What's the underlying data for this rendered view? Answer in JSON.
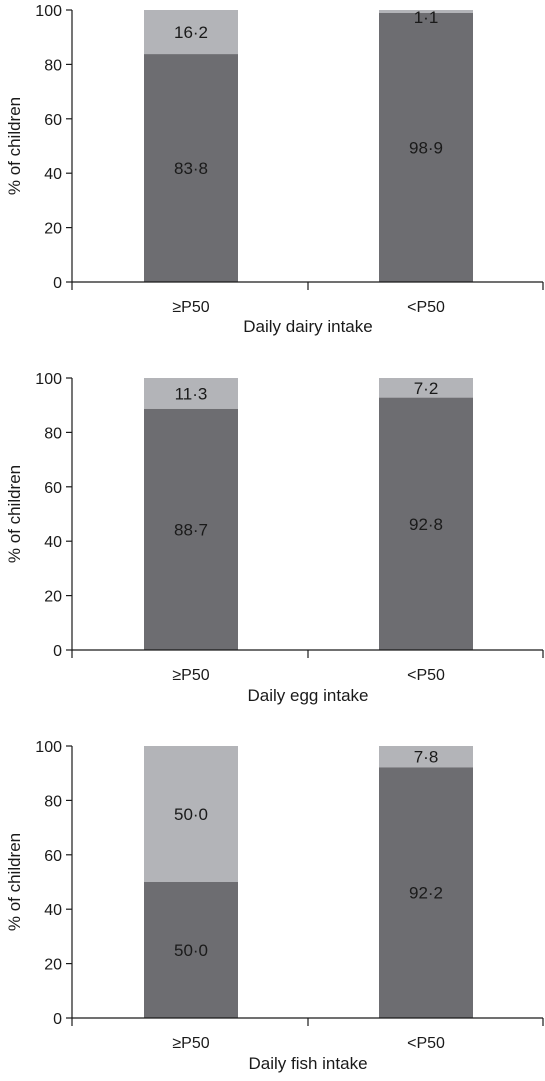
{
  "colors": {
    "bottom_segment": "#6d6d71",
    "top_segment": "#b3b4b8",
    "axis": "#1a1a1a"
  },
  "chart_data": [
    {
      "type": "bar",
      "stacked": true,
      "categories": [
        "≥P50",
        "<P50"
      ],
      "series": [
        {
          "values": [
            83.8,
            98.9
          ],
          "labels": [
            "83·8",
            "98·9"
          ]
        },
        {
          "values": [
            16.2,
            1.1
          ],
          "labels": [
            "16·2",
            "1·1"
          ]
        }
      ],
      "xlabel": "Daily dairy intake",
      "ylabel": "% of children",
      "ylim": [
        0,
        100
      ],
      "yticks": [
        0,
        20,
        40,
        60,
        80,
        100
      ],
      "grid": false
    },
    {
      "type": "bar",
      "stacked": true,
      "categories": [
        "≥P50",
        "<P50"
      ],
      "series": [
        {
          "values": [
            88.7,
            92.8
          ],
          "labels": [
            "88·7",
            "92·8"
          ]
        },
        {
          "values": [
            11.3,
            7.2
          ],
          "labels": [
            "11·3",
            "7·2"
          ]
        }
      ],
      "xlabel": "Daily egg intake",
      "ylabel": "% of children",
      "ylim": [
        0,
        100
      ],
      "yticks": [
        0,
        20,
        40,
        60,
        80,
        100
      ],
      "grid": false
    },
    {
      "type": "bar",
      "stacked": true,
      "categories": [
        "≥P50",
        "<P50"
      ],
      "series": [
        {
          "values": [
            50.0,
            92.2
          ],
          "labels": [
            "50·0",
            "92·2"
          ]
        },
        {
          "values": [
            50.0,
            7.8
          ],
          "labels": [
            "50·0",
            "7·8"
          ]
        }
      ],
      "xlabel": "Daily fish intake",
      "ylabel": "% of children",
      "ylim": [
        0,
        100
      ],
      "yticks": [
        0,
        20,
        40,
        60,
        80,
        100
      ],
      "grid": false
    }
  ]
}
